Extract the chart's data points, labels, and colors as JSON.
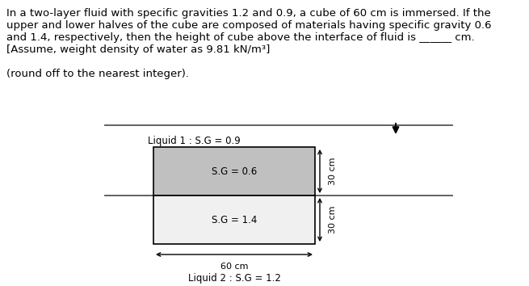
{
  "title_line1": "In a two-layer fluid with specific gravities 1.2 and 0.9, a cube of 60 cm is immersed. If the",
  "title_line2": "upper and lower halves of the cube are composed of materials having specific gravity 0.6",
  "title_line3": "and 1.4, respectively, then the height of cube above the interface of fluid is ______ cm.",
  "title_line4": "[Assume, weight density of water as 9.81 kN/m³]",
  "subtitle_text": "(round off to the nearest integer).",
  "liquid1_label": "Liquid 1 : S.G = 0.9",
  "liquid2_label": "Liquid 2 : S.G = 1.2",
  "upper_label": "S.G = 0.6",
  "lower_label": "S.G = 1.4",
  "width_label": "60 cm",
  "upper_height_label": "30 cm",
  "lower_height_label": "30 cm",
  "upper_color": "#c0c0c0",
  "lower_color": "#f0f0f0",
  "interface_line_color": "#555555",
  "box_edge_color": "#000000",
  "text_color": "#000000",
  "bg_color": "#ffffff",
  "font_size_body": 9.5,
  "font_size_label": 8.5,
  "font_size_dim": 8.0
}
